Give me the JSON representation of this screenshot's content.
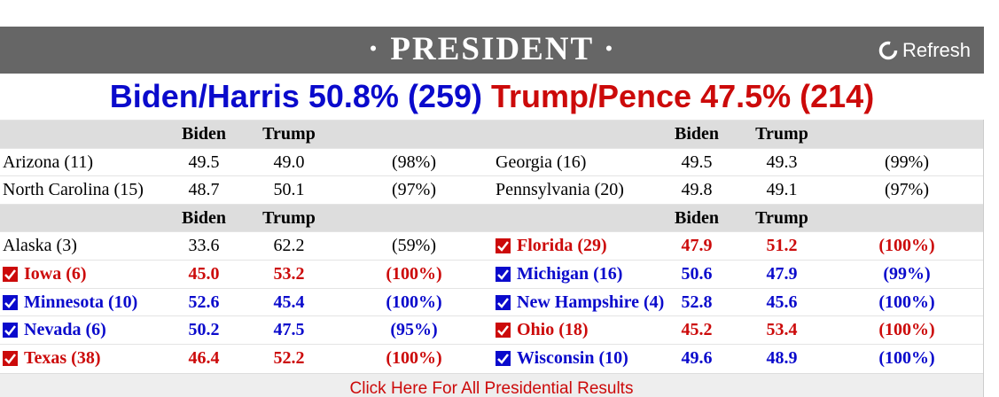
{
  "header": {
    "title": "· PRESIDENT ·",
    "refresh": "Refresh"
  },
  "summary": {
    "biden": "Biden/Harris 50.8% (259)",
    "trump": "Trump/Pence 47.5% (214)"
  },
  "colors": {
    "biden": "#0a0acc",
    "trump": "#cc0a0a"
  },
  "sections": [
    {
      "columns": {
        "left": [
          "Biden",
          "Trump"
        ],
        "right": [
          "Biden",
          "Trump"
        ]
      },
      "rows": [
        [
          {
            "state": "Arizona (11)",
            "biden": "49.5",
            "trump": "49.0",
            "pct": "(98%)",
            "winner": null
          },
          {
            "state": "Georgia (16)",
            "biden": "49.5",
            "trump": "49.3",
            "pct": "(99%)",
            "winner": null
          }
        ],
        [
          {
            "state": "North Carolina (15)",
            "biden": "48.7",
            "trump": "50.1",
            "pct": "(97%)",
            "winner": null
          },
          {
            "state": "Pennsylvania (20)",
            "biden": "49.8",
            "trump": "49.1",
            "pct": "(97%)",
            "winner": null
          }
        ]
      ]
    },
    {
      "columns": {
        "left": [
          "Biden",
          "Trump"
        ],
        "right": [
          "Biden",
          "Trump"
        ]
      },
      "rows": [
        [
          {
            "state": "Alaska (3)",
            "biden": "33.6",
            "trump": "62.2",
            "pct": "(59%)",
            "winner": null
          },
          {
            "state": "Florida (29)",
            "biden": "47.9",
            "trump": "51.2",
            "pct": "(100%)",
            "winner": "trump"
          }
        ],
        [
          {
            "state": "Iowa (6)",
            "biden": "45.0",
            "trump": "53.2",
            "pct": "(100%)",
            "winner": "trump"
          },
          {
            "state": "Michigan (16)",
            "biden": "50.6",
            "trump": "47.9",
            "pct": "(99%)",
            "winner": "biden"
          }
        ],
        [
          {
            "state": "Minnesota (10)",
            "biden": "52.6",
            "trump": "45.4",
            "pct": "(100%)",
            "winner": "biden"
          },
          {
            "state": "New Hampshire (4)",
            "biden": "52.8",
            "trump": "45.6",
            "pct": "(100%)",
            "winner": "biden"
          }
        ],
        [
          {
            "state": "Nevada (6)",
            "biden": "50.2",
            "trump": "47.5",
            "pct": "(95%)",
            "winner": "biden"
          },
          {
            "state": "Ohio (18)",
            "biden": "45.2",
            "trump": "53.4",
            "pct": "(100%)",
            "winner": "trump"
          }
        ],
        [
          {
            "state": "Texas (38)",
            "biden": "46.4",
            "trump": "52.2",
            "pct": "(100%)",
            "winner": "trump"
          },
          {
            "state": "Wisconsin (10)",
            "biden": "49.6",
            "trump": "48.9",
            "pct": "(100%)",
            "winner": "biden"
          }
        ]
      ]
    }
  ],
  "footer": "Click Here For All Presidential Results"
}
